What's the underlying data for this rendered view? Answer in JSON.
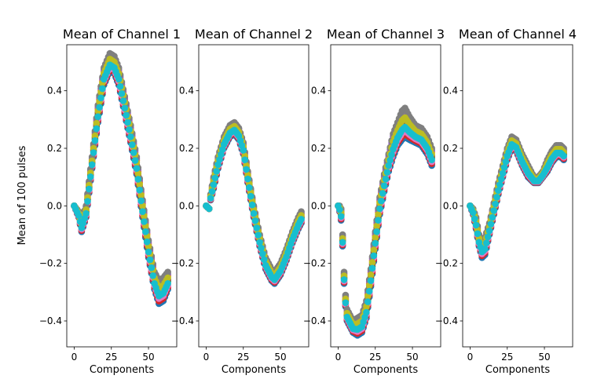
{
  "figure": {
    "ylabel": "Mean of 100 pulses"
  },
  "colors": [
    "#1f77b4",
    "#ff7f0e",
    "#2ca02c",
    "#d62728",
    "#9467bd",
    "#8c564b",
    "#e377c2",
    "#7f7f7f",
    "#bcbd22",
    "#17becf"
  ],
  "chart_data": [
    {
      "type": "scatter",
      "title": "Mean of Channel 1",
      "xlabel": "Components",
      "xlim": [
        -5,
        69
      ],
      "ylim": [
        -0.49,
        0.56
      ],
      "xticks": [
        0,
        25,
        50
      ],
      "yticks": [
        -0.4,
        -0.2,
        0.0,
        0.2,
        0.4
      ],
      "ytick_labels": [
        "−0.4",
        "−0.2",
        "0.0",
        "0.2",
        "0.4"
      ],
      "curve_x": [
        0,
        3,
        5,
        8,
        12,
        16,
        20,
        24,
        27,
        30,
        34,
        38,
        42,
        46,
        50,
        54,
        57,
        60,
        63
      ],
      "curve_y": [
        0.0,
        -0.03,
        -0.07,
        -0.02,
        0.15,
        0.32,
        0.45,
        0.5,
        0.49,
        0.45,
        0.35,
        0.25,
        0.14,
        -0.01,
        -0.15,
        -0.26,
        -0.3,
        -0.29,
        -0.26
      ],
      "spread": [
        0.0,
        0.01,
        0.02,
        0.02,
        0.02,
        0.03,
        0.03,
        0.03,
        0.03,
        0.03,
        0.03,
        0.03,
        0.03,
        0.03,
        0.03,
        0.03,
        0.04,
        0.04,
        0.03
      ]
    },
    {
      "type": "scatter",
      "title": "Mean of Channel 2",
      "xlabel": "Components",
      "xlim": [
        -5,
        69
      ],
      "ylim": [
        -0.49,
        0.56
      ],
      "xticks": [
        0,
        25,
        50
      ],
      "yticks": [
        -0.4,
        -0.2,
        0.0,
        0.2,
        0.4
      ],
      "ytick_labels": [
        "−0.4",
        "−0.2",
        "0.0",
        "0.2",
        "0.4"
      ],
      "curve_x": [
        0,
        2,
        3,
        5,
        8,
        12,
        16,
        19,
        22,
        25,
        28,
        32,
        36,
        40,
        44,
        46,
        50,
        54,
        58,
        62,
        64
      ],
      "curve_y": [
        0.0,
        -0.01,
        0.03,
        0.08,
        0.15,
        0.22,
        0.26,
        0.27,
        0.25,
        0.2,
        0.1,
        -0.02,
        -0.12,
        -0.2,
        -0.24,
        -0.25,
        -0.22,
        -0.17,
        -0.11,
        -0.06,
        -0.04
      ],
      "spread": [
        0.0,
        0.0,
        0.01,
        0.02,
        0.02,
        0.02,
        0.02,
        0.02,
        0.02,
        0.02,
        0.02,
        0.02,
        0.02,
        0.02,
        0.02,
        0.02,
        0.02,
        0.02,
        0.02,
        0.02,
        0.02
      ]
    },
    {
      "type": "scatter",
      "title": "Mean of Channel 3",
      "xlabel": "Components",
      "xlim": [
        -5,
        69
      ],
      "ylim": [
        -0.49,
        0.56
      ],
      "xticks": [
        0,
        25,
        50
      ],
      "yticks": [
        -0.4,
        -0.2,
        0.0,
        0.2,
        0.4
      ],
      "ytick_labels": [
        "−0.4",
        "−0.2",
        "0.0",
        "0.2",
        "0.4"
      ],
      "curve_x": [
        0,
        1,
        2,
        3,
        4,
        5,
        6,
        8,
        10,
        13,
        16,
        19,
        22,
        25,
        28,
        31,
        34,
        37,
        40,
        43,
        45,
        48,
        52,
        56,
        60,
        63
      ],
      "curve_y": [
        0.0,
        -0.01,
        -0.03,
        -0.12,
        -0.25,
        -0.33,
        -0.38,
        -0.4,
        -0.42,
        -0.42,
        -0.41,
        -0.36,
        -0.25,
        -0.12,
        0.0,
        0.08,
        0.15,
        0.21,
        0.25,
        0.28,
        0.29,
        0.27,
        0.25,
        0.24,
        0.21,
        0.17
      ],
      "spread": [
        0.0,
        0.01,
        0.02,
        0.02,
        0.02,
        0.02,
        0.02,
        0.02,
        0.02,
        0.03,
        0.03,
        0.03,
        0.03,
        0.03,
        0.03,
        0.03,
        0.03,
        0.04,
        0.04,
        0.05,
        0.05,
        0.04,
        0.03,
        0.03,
        0.03,
        0.03
      ]
    },
    {
      "type": "scatter",
      "title": "Mean of Channel 4",
      "xlabel": "Components",
      "xlim": [
        -5,
        69
      ],
      "ylim": [
        -0.49,
        0.56
      ],
      "xticks": [
        0,
        25,
        50
      ],
      "yticks": [
        -0.4,
        -0.2,
        0.0,
        0.2,
        0.4
      ],
      "ytick_labels": [
        "−0.4",
        "−0.2",
        "0.0",
        "0.2",
        "0.4"
      ],
      "curve_x": [
        0,
        2,
        4,
        6,
        8,
        10,
        13,
        16,
        19,
        22,
        25,
        28,
        31,
        35,
        39,
        43,
        46,
        49,
        52,
        55,
        58,
        61,
        63
      ],
      "curve_y": [
        0.0,
        -0.02,
        -0.06,
        -0.12,
        -0.15,
        -0.14,
        -0.08,
        -0.01,
        0.06,
        0.12,
        0.18,
        0.22,
        0.21,
        0.16,
        0.12,
        0.09,
        0.09,
        0.11,
        0.14,
        0.17,
        0.19,
        0.19,
        0.18
      ],
      "spread": [
        0.0,
        0.01,
        0.02,
        0.02,
        0.03,
        0.03,
        0.02,
        0.02,
        0.02,
        0.02,
        0.02,
        0.02,
        0.02,
        0.02,
        0.02,
        0.01,
        0.01,
        0.01,
        0.02,
        0.02,
        0.02,
        0.02,
        0.02
      ]
    }
  ]
}
